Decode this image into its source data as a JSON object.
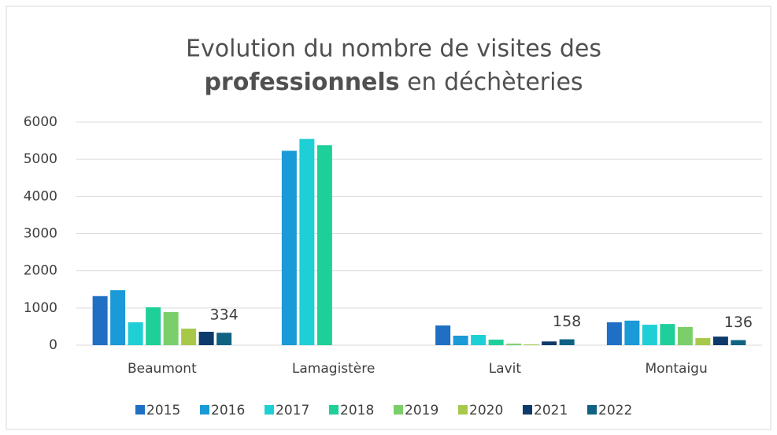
{
  "chart_data": {
    "type": "bar",
    "title": [
      "Evolution du nombre de visites des",
      "professionnels",
      "en déchèteries"
    ],
    "categories": [
      "Beaumont",
      "Lamagistère",
      "Lavit",
      "Montaigu"
    ],
    "series": [
      {
        "name": "2015",
        "color": "#1f6fc5",
        "values": [
          1320,
          null,
          530,
          615
        ]
      },
      {
        "name": "2016",
        "color": "#1a9ad6",
        "values": [
          1480,
          5230,
          255,
          660
        ]
      },
      {
        "name": "2017",
        "color": "#1fcfd6",
        "values": [
          615,
          5550,
          275,
          550
        ]
      },
      {
        "name": "2018",
        "color": "#1fcf9a",
        "values": [
          1020,
          5380,
          150,
          570
        ]
      },
      {
        "name": "2019",
        "color": "#7acf6a",
        "values": [
          890,
          null,
          40,
          490
        ]
      },
      {
        "name": "2020",
        "color": "#a8c84a",
        "values": [
          445,
          null,
          20,
          190
        ]
      },
      {
        "name": "2021",
        "color": "#0e3a6b",
        "values": [
          360,
          null,
          100,
          230
        ]
      },
      {
        "name": "2022",
        "color": "#0f6282",
        "values": [
          334,
          null,
          158,
          136
        ],
        "value_labels": [
          "334",
          null,
          "158",
          "136"
        ]
      }
    ],
    "ylim": [
      0,
      6000
    ],
    "yticks": [
      0,
      1000,
      2000,
      3000,
      4000,
      5000,
      6000
    ],
    "grid": true,
    "legend": "bottom"
  }
}
